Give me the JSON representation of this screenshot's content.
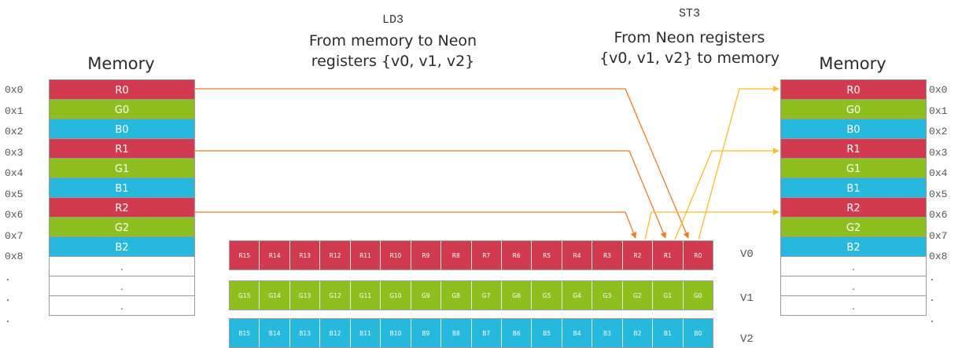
{
  "colors": {
    "r": "#d13a4f",
    "g": "#8fbf1f",
    "b": "#26b8dd",
    "load_arrow": "#f07a2a",
    "store_arrow": "#f7bd2a"
  },
  "ld3": {
    "mnemonic": "LD3",
    "line1": "From memory to Neon",
    "line2": "registers {v0, v1, v2}"
  },
  "st3": {
    "mnemonic": "ST3",
    "line1": "From Neon registers",
    "line2": "{v0, v1, v2} to memory"
  },
  "left_memory": {
    "title": "Memory",
    "rows": [
      {
        "addr": "0x0",
        "label": "R0",
        "kind": "r"
      },
      {
        "addr": "0x1",
        "label": "G0",
        "kind": "g"
      },
      {
        "addr": "0x2",
        "label": "B0",
        "kind": "b"
      },
      {
        "addr": "0x3",
        "label": "R1",
        "kind": "r"
      },
      {
        "addr": "0x4",
        "label": "G1",
        "kind": "g"
      },
      {
        "addr": "0x5",
        "label": "B1",
        "kind": "b"
      },
      {
        "addr": "0x6",
        "label": "R2",
        "kind": "r"
      },
      {
        "addr": "0x7",
        "label": "G2",
        "kind": "g"
      },
      {
        "addr": "0x8",
        "label": "B2",
        "kind": "b"
      },
      {
        "addr": ".",
        "label": ".",
        "kind": "empty"
      },
      {
        "addr": ".",
        "label": ".",
        "kind": "empty"
      },
      {
        "addr": ".",
        "label": ".",
        "kind": "empty"
      }
    ]
  },
  "right_memory": {
    "title": "Memory",
    "rows": [
      {
        "addr": "0x0",
        "label": "R0",
        "kind": "r"
      },
      {
        "addr": "0x1",
        "label": "G0",
        "kind": "g"
      },
      {
        "addr": "0x2",
        "label": "B0",
        "kind": "b"
      },
      {
        "addr": "0x3",
        "label": "R1",
        "kind": "r"
      },
      {
        "addr": "0x4",
        "label": "G1",
        "kind": "g"
      },
      {
        "addr": "0x5",
        "label": "B1",
        "kind": "b"
      },
      {
        "addr": "0x6",
        "label": "R2",
        "kind": "r"
      },
      {
        "addr": "0x7",
        "label": "G2",
        "kind": "g"
      },
      {
        "addr": "0x8",
        "label": "B2",
        "kind": "b"
      },
      {
        "addr": ".",
        "label": ".",
        "kind": "empty"
      },
      {
        "addr": ".",
        "label": ".",
        "kind": "empty"
      },
      {
        "addr": ".",
        "label": ".",
        "kind": "empty"
      }
    ]
  },
  "registers": [
    {
      "name": "V0",
      "kind": "r",
      "lanes": [
        "R15",
        "R14",
        "R13",
        "R12",
        "R11",
        "R10",
        "R9",
        "R8",
        "R7",
        "R6",
        "R5",
        "R4",
        "R3",
        "R2",
        "R1",
        "R0"
      ]
    },
    {
      "name": "V1",
      "kind": "g",
      "lanes": [
        "G15",
        "G14",
        "G13",
        "G12",
        "G11",
        "G10",
        "G9",
        "G8",
        "G7",
        "G6",
        "G5",
        "G4",
        "G3",
        "G2",
        "G1",
        "G0"
      ]
    },
    {
      "name": "V2",
      "kind": "b",
      "lanes": [
        "B15",
        "B14",
        "B13",
        "B12",
        "B11",
        "B10",
        "B9",
        "B8",
        "B7",
        "B6",
        "B5",
        "B4",
        "B3",
        "B2",
        "B1",
        "B0"
      ]
    }
  ]
}
